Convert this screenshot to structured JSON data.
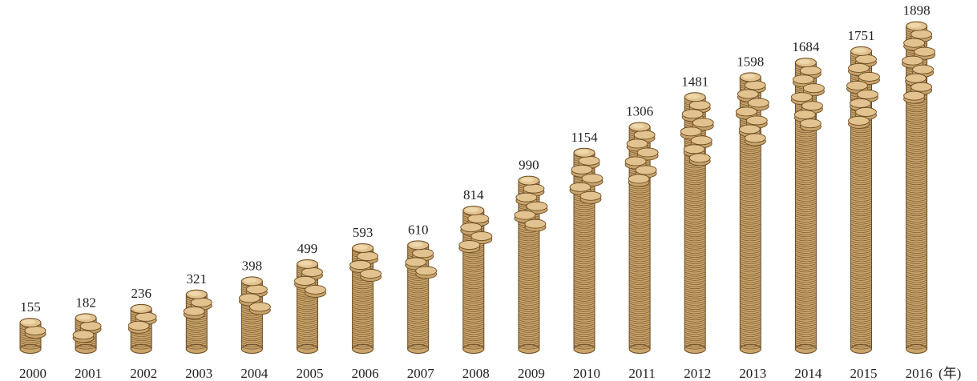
{
  "chart_data": {
    "type": "bar",
    "categories": [
      "2000",
      "2001",
      "2002",
      "2003",
      "2004",
      "2005",
      "2006",
      "2007",
      "2008",
      "2009",
      "2010",
      "2011",
      "2012",
      "2013",
      "2014",
      "2015",
      "2016"
    ],
    "values": [
      155,
      182,
      236,
      321,
      398,
      499,
      593,
      610,
      814,
      990,
      1154,
      1306,
      1481,
      1598,
      1684,
      1751,
      1898
    ],
    "title": "",
    "xlabel": "",
    "ylabel": "",
    "x_unit": "(年)",
    "ylim": [
      0,
      1900
    ],
    "grid": false,
    "legend": "none",
    "colors": {
      "coin_face": "#e2c28e",
      "coin_side": "#c9a46b",
      "coin_edge": "#6b4c24",
      "coin_highlight": "#f3dfb6",
      "text": "#231f20"
    }
  }
}
